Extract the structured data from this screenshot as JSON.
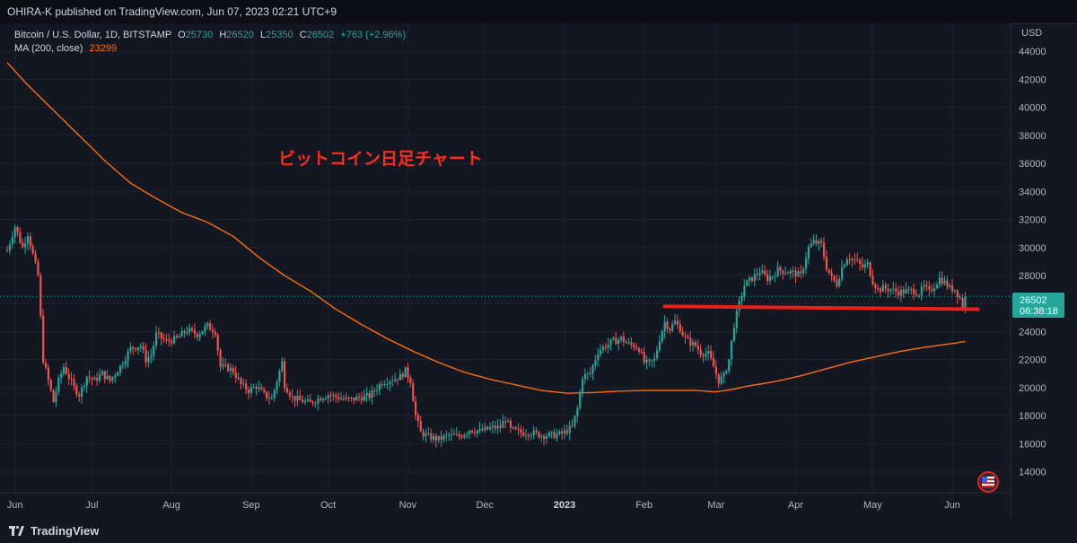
{
  "header": {
    "published": "OHIRA-K published on TradingView.com, Jun 07, 2023 02:21 UTC+9"
  },
  "legend": {
    "symbol": "Bitcoin / U.S. Dollar, 1D, BITSTAMP",
    "o_label": "O",
    "o_value": "25730",
    "h_label": "H",
    "h_value": "26520",
    "l_label": "L",
    "l_value": "25350",
    "c_label": "C",
    "c_value": "26502",
    "change": "+763 (+2.96%)",
    "ma_label": "MA (200, close)",
    "ma_value": "23299"
  },
  "annotation": {
    "text": "ビットコイン日足チャート",
    "color": "#ff2a1a"
  },
  "price_tag": {
    "price": "26502",
    "countdown": "06:38:18"
  },
  "branding": {
    "footer": "TradingView"
  },
  "colors": {
    "background": "#131722",
    "up": "#26a69a",
    "down": "#ef5350",
    "ma": "#ff6d00",
    "support_line": "#e8201a",
    "grid": "#1f2330",
    "axis_text": "#b2b5be"
  },
  "chart_data": {
    "type": "candlestick",
    "title": "",
    "ylabel": "USD",
    "ylim": [
      12500,
      46000
    ],
    "y_ticks": [
      14000,
      16000,
      18000,
      20000,
      22000,
      24000,
      26000,
      28000,
      30000,
      32000,
      34000,
      36000,
      38000,
      40000,
      42000,
      44000
    ],
    "x_labels": [
      {
        "label": "Jun",
        "day": 5
      },
      {
        "label": "Jul",
        "day": 35
      },
      {
        "label": "Aug",
        "day": 66
      },
      {
        "label": "Sep",
        "day": 97
      },
      {
        "label": "Oct",
        "day": 127
      },
      {
        "label": "Nov",
        "day": 158
      },
      {
        "label": "Dec",
        "day": 188
      },
      {
        "label": "2023",
        "day": 219,
        "bold": true
      },
      {
        "label": "Feb",
        "day": 250
      },
      {
        "label": "Mar",
        "day": 278
      },
      {
        "label": "Apr",
        "day": 309
      },
      {
        "label": "May",
        "day": 339
      },
      {
        "label": "Jun",
        "day": 370
      }
    ],
    "day_range": [
      2,
      385
    ],
    "last_price": 26502,
    "price_anchors": [
      [
        2,
        29800
      ],
      [
        5,
        31500
      ],
      [
        8,
        30000
      ],
      [
        10,
        31000
      ],
      [
        12,
        29500
      ],
      [
        14,
        28000
      ],
      [
        16,
        22000
      ],
      [
        18,
        20500
      ],
      [
        20,
        19000
      ],
      [
        22,
        20500
      ],
      [
        24,
        21500
      ],
      [
        28,
        20000
      ],
      [
        30,
        19500
      ],
      [
        33,
        20800
      ],
      [
        36,
        20500
      ],
      [
        39,
        21000
      ],
      [
        42,
        20500
      ],
      [
        46,
        21500
      ],
      [
        50,
        22800
      ],
      [
        54,
        23000
      ],
      [
        56,
        22000
      ],
      [
        58,
        22300
      ],
      [
        60,
        23800
      ],
      [
        64,
        23300
      ],
      [
        68,
        23500
      ],
      [
        72,
        24100
      ],
      [
        76,
        23800
      ],
      [
        80,
        24400
      ],
      [
        83,
        24000
      ],
      [
        85,
        21500
      ],
      [
        88,
        21400
      ],
      [
        90,
        21200
      ],
      [
        93,
        20200
      ],
      [
        96,
        19800
      ],
      [
        99,
        20100
      ],
      [
        102,
        19500
      ],
      [
        105,
        19200
      ],
      [
        107,
        20500
      ],
      [
        109,
        21800
      ],
      [
        110,
        20200
      ],
      [
        113,
        19300
      ],
      [
        116,
        19100
      ],
      [
        120,
        18900
      ],
      [
        124,
        19300
      ],
      [
        127,
        19500
      ],
      [
        131,
        19300
      ],
      [
        135,
        19100
      ],
      [
        139,
        19300
      ],
      [
        143,
        19400
      ],
      [
        148,
        20400
      ],
      [
        152,
        20600
      ],
      [
        155,
        20800
      ],
      [
        157,
        21200
      ],
      [
        159,
        20500
      ],
      [
        161,
        18000
      ],
      [
        163,
        16800
      ],
      [
        166,
        16500
      ],
      [
        170,
        16300
      ],
      [
        174,
        16600
      ],
      [
        178,
        16500
      ],
      [
        182,
        17000
      ],
      [
        186,
        16900
      ],
      [
        190,
        17100
      ],
      [
        194,
        17200
      ],
      [
        196,
        17800
      ],
      [
        198,
        17000
      ],
      [
        202,
        16800
      ],
      [
        206,
        16800
      ],
      [
        210,
        16600
      ],
      [
        214,
        16600
      ],
      [
        218,
        16700
      ],
      [
        222,
        17200
      ],
      [
        224,
        18500
      ],
      [
        226,
        20800
      ],
      [
        229,
        21000
      ],
      [
        232,
        22600
      ],
      [
        235,
        23000
      ],
      [
        238,
        23300
      ],
      [
        241,
        23500
      ],
      [
        244,
        23100
      ],
      [
        246,
        23000
      ],
      [
        248,
        22800
      ],
      [
        250,
        21800
      ],
      [
        252,
        21700
      ],
      [
        254,
        22000
      ],
      [
        256,
        23500
      ],
      [
        258,
        24700
      ],
      [
        260,
        24200
      ],
      [
        262,
        24700
      ],
      [
        264,
        24200
      ],
      [
        266,
        23500
      ],
      [
        268,
        23200
      ],
      [
        270,
        23000
      ],
      [
        272,
        22500
      ],
      [
        275,
        22400
      ],
      [
        277,
        21500
      ],
      [
        279,
        20500
      ],
      [
        281,
        20800
      ],
      [
        283,
        22000
      ],
      [
        285,
        24500
      ],
      [
        287,
        26000
      ],
      [
        289,
        27300
      ],
      [
        292,
        27800
      ],
      [
        295,
        28300
      ],
      [
        298,
        27800
      ],
      [
        300,
        28000
      ],
      [
        302,
        28400
      ],
      [
        305,
        28300
      ],
      [
        308,
        28200
      ],
      [
        311,
        28000
      ],
      [
        314,
        30000
      ],
      [
        316,
        30400
      ],
      [
        319,
        30200
      ],
      [
        321,
        28600
      ],
      [
        323,
        27800
      ],
      [
        325,
        27400
      ],
      [
        327,
        28600
      ],
      [
        329,
        29300
      ],
      [
        332,
        29100
      ],
      [
        335,
        28600
      ],
      [
        337,
        28800
      ],
      [
        339,
        27600
      ],
      [
        341,
        27000
      ],
      [
        343,
        27100
      ],
      [
        346,
        27000
      ],
      [
        349,
        26800
      ],
      [
        352,
        26900
      ],
      [
        355,
        26900
      ],
      [
        357,
        26700
      ],
      [
        359,
        27200
      ],
      [
        361,
        26800
      ],
      [
        363,
        27300
      ],
      [
        365,
        27800
      ],
      [
        367,
        27500
      ],
      [
        369,
        27100
      ],
      [
        371,
        27000
      ],
      [
        373,
        26400
      ],
      [
        374,
        25800
      ],
      [
        375,
        26502
      ]
    ],
    "ma200_anchors": [
      [
        2,
        43200
      ],
      [
        10,
        41600
      ],
      [
        20,
        39800
      ],
      [
        30,
        38000
      ],
      [
        40,
        36200
      ],
      [
        50,
        34600
      ],
      [
        60,
        33500
      ],
      [
        70,
        32500
      ],
      [
        80,
        31800
      ],
      [
        90,
        30800
      ],
      [
        100,
        29300
      ],
      [
        110,
        28000
      ],
      [
        120,
        26900
      ],
      [
        130,
        25600
      ],
      [
        140,
        24500
      ],
      [
        150,
        23500
      ],
      [
        160,
        22600
      ],
      [
        170,
        21800
      ],
      [
        180,
        21100
      ],
      [
        190,
        20600
      ],
      [
        200,
        20200
      ],
      [
        210,
        19800
      ],
      [
        220,
        19600
      ],
      [
        230,
        19650
      ],
      [
        240,
        19750
      ],
      [
        250,
        19800
      ],
      [
        260,
        19800
      ],
      [
        270,
        19800
      ],
      [
        278,
        19700
      ],
      [
        285,
        19900
      ],
      [
        290,
        20100
      ],
      [
        300,
        20400
      ],
      [
        310,
        20800
      ],
      [
        320,
        21300
      ],
      [
        330,
        21800
      ],
      [
        340,
        22200
      ],
      [
        350,
        22600
      ],
      [
        360,
        22900
      ],
      [
        370,
        23150
      ],
      [
        375,
        23299
      ]
    ],
    "support_line": {
      "from_day": 258,
      "from_price": 25800,
      "to_day": 380,
      "to_price": 25600
    }
  }
}
